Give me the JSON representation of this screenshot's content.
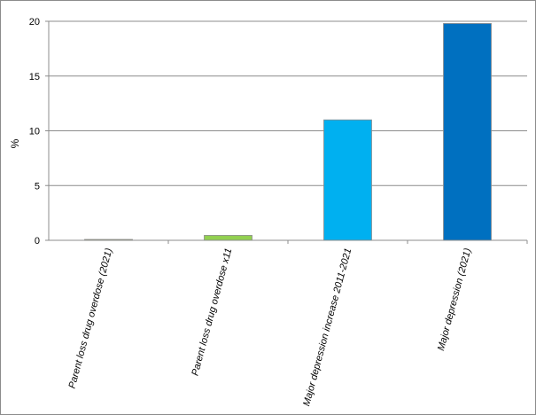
{
  "chart_data": {
    "type": "bar",
    "categories": [
      "Parent loss drug overdose (2021)",
      "Parent loss drug overdose x11",
      "Major depression increase 2011-2021",
      "Major depression (2021)"
    ],
    "values": [
      0.04,
      0.45,
      11.0,
      19.8
    ],
    "colors": [
      "#9bbb59",
      "#92d050",
      "#00b0f0",
      "#0070c0"
    ],
    "title": "",
    "xlabel": "",
    "ylabel": "%",
    "ylim": [
      0,
      20
    ],
    "yticks": [
      0,
      5,
      10,
      15,
      20
    ],
    "grid": true,
    "legend": "none"
  }
}
